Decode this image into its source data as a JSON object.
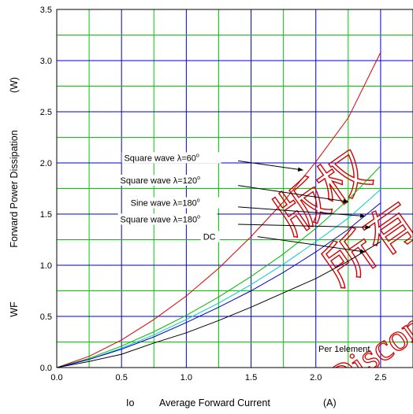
{
  "chart_data": {
    "type": "line",
    "xlabel_prefix": "Io",
    "xlabel": "Average Forward Current",
    "xlabel_unit": "(A)",
    "ylabel_prefix": "WF",
    "ylabel": "Forward Power Dissipation",
    "ylabel_unit": "(W)",
    "xlim": [
      0,
      2.75
    ],
    "ylim": [
      0,
      3.5
    ],
    "x_ticks": [
      "0.0",
      "0.5",
      "1.0",
      "1.5",
      "2.0",
      "2.5"
    ],
    "y_ticks": [
      "0.0",
      "0.5",
      "1.0",
      "1.5",
      "2.0",
      "2.5",
      "3.0",
      "3.5"
    ],
    "grid": true,
    "grid_colors": {
      "major_vertical": "#0000cc",
      "minor_vertical": "#00cc00",
      "major_horizontal": "#0000cc",
      "minor_horizontal": "#00cc00"
    },
    "series": [
      {
        "name": "Square wave λ=60°",
        "color": "#e00000",
        "x": [
          0,
          0.25,
          0.5,
          0.75,
          1.0,
          1.25,
          1.5,
          1.75,
          2.0,
          2.25,
          2.5
        ],
        "y": [
          0,
          0.11,
          0.27,
          0.47,
          0.7,
          0.97,
          1.28,
          1.62,
          2.01,
          2.44,
          3.08
        ]
      },
      {
        "name": "Square wave λ=120°",
        "color": "#00bb00",
        "x": [
          0,
          0.25,
          0.5,
          0.75,
          1.0,
          1.25,
          1.5,
          1.75,
          2.0,
          2.25,
          2.5
        ],
        "y": [
          0,
          0.09,
          0.21,
          0.35,
          0.51,
          0.69,
          0.89,
          1.11,
          1.36,
          1.64,
          1.97
        ]
      },
      {
        "name": "Sine wave λ=180°",
        "color": "#00cccc",
        "x": [
          0,
          0.25,
          0.5,
          0.75,
          1.0,
          1.25,
          1.5,
          1.75,
          2.0,
          2.25,
          2.5
        ],
        "y": [
          0,
          0.08,
          0.19,
          0.32,
          0.47,
          0.63,
          0.81,
          1.01,
          1.23,
          1.46,
          1.74
        ]
      },
      {
        "name": "Square wave λ=180°",
        "color": "#0000cc",
        "x": [
          0,
          0.25,
          0.5,
          0.75,
          1.0,
          1.25,
          1.5,
          1.75,
          2.0,
          2.25,
          2.5
        ],
        "y": [
          0,
          0.08,
          0.18,
          0.3,
          0.44,
          0.59,
          0.75,
          0.93,
          1.13,
          1.35,
          1.61
        ]
      },
      {
        "name": "DC",
        "color": "#000000",
        "x": [
          0,
          0.25,
          0.5,
          0.75,
          1.0,
          1.25,
          1.5,
          1.75,
          2.0,
          2.25,
          2.5
        ],
        "y": [
          0,
          0.06,
          0.13,
          0.24,
          0.34,
          0.46,
          0.59,
          0.73,
          0.87,
          1.04,
          1.23
        ]
      }
    ],
    "annotations": [
      {
        "label": "Square wave λ=60",
        "sup": "o",
        "text_x": 0.52,
        "text_y": 2.02,
        "arrow_from": [
          1.4,
          2.02
        ],
        "arrow_to": [
          1.9,
          1.93
        ]
      },
      {
        "label": "Square wave λ=120",
        "sup": "o",
        "text_x": 0.49,
        "text_y": 1.8,
        "arrow_from": [
          1.4,
          1.78
        ],
        "arrow_to": [
          2.25,
          1.62
        ]
      },
      {
        "label": "Sine wave λ=180",
        "sup": "o",
        "text_x": 0.57,
        "text_y": 1.58,
        "arrow_from": [
          1.4,
          1.57
        ],
        "arrow_to": [
          2.38,
          1.48
        ]
      },
      {
        "label": "Square wave λ=180",
        "sup": "o",
        "text_x": 0.49,
        "text_y": 1.42,
        "arrow_from": [
          1.4,
          1.4
        ],
        "arrow_to": [
          2.42,
          1.37
        ]
      },
      {
        "label": "DC",
        "sup": "",
        "text_x": 1.13,
        "text_y": 1.25,
        "arrow_from": [
          1.55,
          1.28
        ],
        "arrow_to": [
          2.38,
          1.13
        ]
      }
    ],
    "note": "Per 1element",
    "watermark": "Discontinued"
  }
}
